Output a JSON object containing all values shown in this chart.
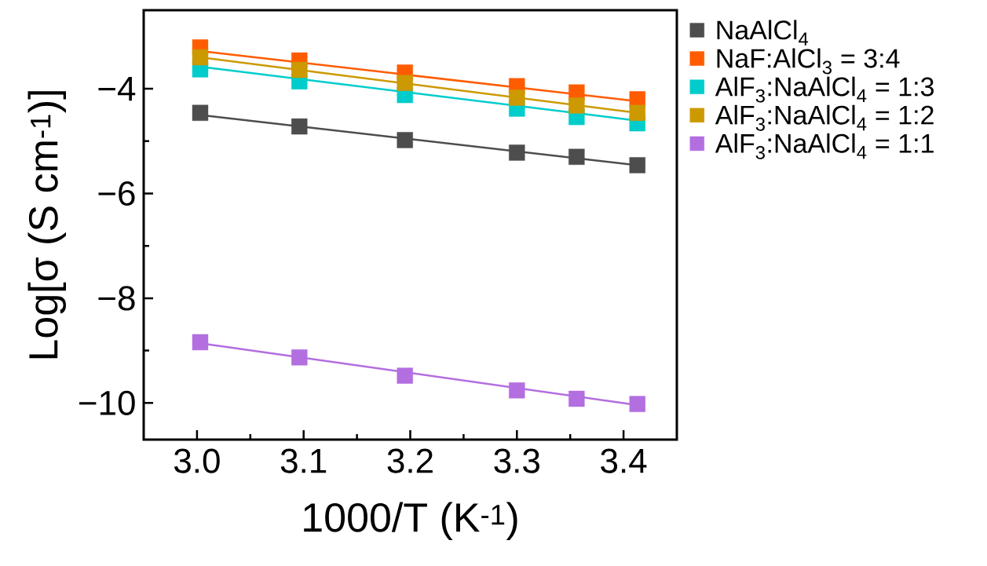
{
  "chart_data": {
    "type": "scatter",
    "xlabel": "1000/T (K$^{-1}$)",
    "ylabel": "Log[σ (S cm$^{-1}$)]",
    "xlim": [
      2.95,
      3.45
    ],
    "ylim": [
      -10.7,
      -2.5
    ],
    "xticks": [
      {
        "value": 3.0,
        "label": "3.0"
      },
      3.1,
      3.2,
      3.3,
      3.4
    ],
    "yticks": [
      {
        "value": -10,
        "label": "−10"
      },
      {
        "value": -8,
        "label": "−8"
      },
      {
        "value": -6,
        "label": "−6"
      },
      {
        "value": -4,
        "label": "−4"
      }
    ],
    "marker": "square",
    "legend": "right",
    "series": [
      {
        "name": "NaAlCl$_{4}$",
        "color": "#4d4d4d",
        "x": [
          3.003,
          3.096,
          3.195,
          3.3,
          3.356,
          3.413
        ],
        "values": [
          -4.46,
          -4.72,
          -4.98,
          -5.22,
          -5.3,
          -5.46
        ]
      },
      {
        "name": "NaF:AlCl$_{3}$ = 3:4",
        "color": "#ff5c00",
        "x": [
          3.003,
          3.096,
          3.195,
          3.3,
          3.356,
          3.413
        ],
        "values": [
          -3.21,
          -3.46,
          -3.69,
          -3.95,
          -4.07,
          -4.2
        ]
      },
      {
        "name": "AlF$_{3}$:NaAlCl$_{4}$ = 1:3",
        "color": "#00cccc",
        "x": [
          3.003,
          3.096,
          3.195,
          3.3,
          3.356,
          3.413
        ],
        "values": [
          -3.63,
          -3.86,
          -4.12,
          -4.38,
          -4.54,
          -4.66
        ]
      },
      {
        "name": "AlF$_{3}$:NaAlCl$_{4}$ = 1:2",
        "color": "#cc9900",
        "x": [
          3.003,
          3.096,
          3.195,
          3.3,
          3.356,
          3.413
        ],
        "values": [
          -3.4,
          -3.64,
          -3.89,
          -4.17,
          -4.32,
          -4.46
        ]
      },
      {
        "name": "AlF$_{3}$:NaAlCl$_{4}$ = 1:1",
        "color": "#b36ee0",
        "x": [
          3.003,
          3.096,
          3.195,
          3.3,
          3.356,
          3.413
        ],
        "values": [
          -8.84,
          -9.13,
          -9.48,
          -9.76,
          -9.92,
          -10.02
        ]
      },
      {
        "type": "line",
        "marker": "none",
        "color": "#4d4d4d",
        "x": [
          3.003,
          3.413
        ],
        "values": [
          -4.5,
          -5.46
        ]
      },
      {
        "type": "line",
        "marker": "none",
        "color": "#ff5c00",
        "x": [
          3.003,
          3.413
        ],
        "values": [
          -3.28,
          -4.24
        ]
      },
      {
        "type": "line",
        "marker": "none",
        "color": "#00cccc",
        "x": [
          3.003,
          3.413
        ],
        "values": [
          -3.58,
          -4.61
        ]
      },
      {
        "type": "line",
        "marker": "none",
        "color": "#cc9900",
        "x": [
          3.003,
          3.413
        ],
        "values": [
          -3.4,
          -4.46
        ]
      },
      {
        "type": "line",
        "marker": "none",
        "color": "#b36ee0",
        "x": [
          3.003,
          3.413
        ],
        "values": [
          -8.86,
          -10.04
        ]
      }
    ]
  }
}
